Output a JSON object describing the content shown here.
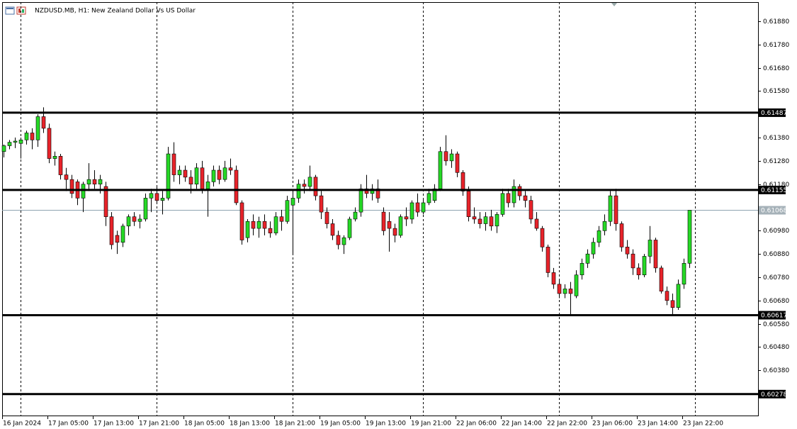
{
  "chart_data": {
    "type": "candlestick",
    "title": "NZDUSD.MB, H1:  New Zealand Dollar Vs US Dollar",
    "categories": [
      "16 Jan 2024",
      null,
      null,
      null,
      null,
      null,
      null,
      null,
      "17 Jan 05:00",
      null,
      null,
      null,
      null,
      null,
      null,
      null,
      "17 Jan 13:00",
      null,
      null,
      null,
      null,
      null,
      null,
      null,
      "17 Jan 21:00",
      null,
      null,
      null,
      null,
      null,
      null,
      null,
      "18 Jan 05:00",
      null,
      null,
      null,
      null,
      null,
      null,
      null,
      "18 Jan 13:00",
      null,
      null,
      null,
      null,
      null,
      null,
      null,
      "18 Jan 21:00",
      null,
      null,
      null,
      null,
      null,
      null,
      null,
      "19 Jan 05:00",
      null,
      null,
      null,
      null,
      null,
      null,
      null,
      "19 Jan 13:00",
      null,
      null,
      null,
      null,
      null,
      null,
      null,
      "19 Jan 21:00",
      null,
      null,
      null,
      null,
      null,
      null,
      null,
      "22 Jan 06:00",
      null,
      null,
      null,
      null,
      null,
      null,
      null,
      "22 Jan 14:00",
      null,
      null,
      null,
      null,
      null,
      null,
      null,
      "22 Jan 22:00",
      null,
      null,
      null,
      null,
      null,
      null,
      null,
      "23 Jan 06:00",
      null,
      null,
      null,
      null,
      null,
      null,
      null,
      "23 Jan 14:00",
      null,
      null,
      null,
      null,
      null,
      null,
      null,
      "23 Jan 22:00",
      null
    ],
    "open": [
      0.6132,
      0.61345,
      0.6136,
      0.61355,
      0.6137,
      0.614,
      0.6137,
      0.6147,
      0.6142,
      0.6129,
      0.613,
      0.6122,
      0.612,
      0.6119,
      0.6112,
      0.6118,
      0.612,
      0.6118,
      0.6117,
      0.6104,
      0.6096,
      0.6093,
      0.61,
      0.6104,
      0.6102,
      0.6103,
      0.6112,
      0.6114,
      0.6111,
      0.6112,
      0.6131,
      0.6122,
      0.6124,
      0.6121,
      0.6118,
      0.6125,
      0.6116,
      0.6119,
      0.6124,
      0.612,
      0.6125,
      0.6124,
      0.611,
      0.6095,
      0.6102,
      0.6099,
      0.6102,
      0.6099,
      0.6097,
      0.6104,
      0.6102,
      0.6109,
      0.6112,
      0.6118,
      0.6117,
      0.6121,
      0.6113,
      0.6106,
      0.6101,
      0.6096,
      0.6092,
      0.6095,
      0.6103,
      0.6106,
      0.6116,
      0.6114,
      0.6116,
      0.6106,
      0.6102,
      0.6099,
      0.6096,
      0.6104,
      0.6103,
      0.611,
      0.6106,
      0.611,
      0.6111,
      0.6116,
      0.6132,
      0.6128,
      0.6131,
      0.6123,
      0.6115,
      0.6104,
      0.6103,
      0.6101,
      0.6104,
      0.61,
      0.6105,
      0.6114,
      0.611,
      0.6117,
      0.6113,
      0.6111,
      0.6103,
      0.6099,
      0.6091,
      0.608,
      0.6075,
      0.6071,
      0.6073,
      0.607,
      0.6079,
      0.6084,
      0.6088,
      0.6093,
      0.6098,
      0.6102,
      0.6113,
      0.6101,
      0.6091,
      0.6088,
      0.6082,
      0.6079,
      0.6087,
      0.6094,
      0.6082,
      0.6072,
      0.6068,
      0.6065,
      0.6075,
      0.6084
    ],
    "high": [
      0.6135,
      0.6137,
      0.6138,
      0.6138,
      0.6141,
      0.6142,
      0.6148,
      0.6151,
      0.6144,
      0.6132,
      0.6131,
      0.6125,
      0.6122,
      0.612,
      0.6119,
      0.6127,
      0.6124,
      0.6122,
      0.6119,
      0.6106,
      0.6098,
      0.6101,
      0.6105,
      0.6106,
      0.6105,
      0.6114,
      0.6116,
      0.6117,
      0.6115,
      0.6134,
      0.6136,
      0.6126,
      0.6126,
      0.6124,
      0.6127,
      0.6128,
      0.6122,
      0.6126,
      0.6126,
      0.6128,
      0.6129,
      0.6126,
      0.6111,
      0.6103,
      0.6105,
      0.6104,
      0.6105,
      0.6102,
      0.6106,
      0.6107,
      0.6113,
      0.6115,
      0.612,
      0.612,
      0.6126,
      0.6122,
      0.6115,
      0.6108,
      0.6103,
      0.6098,
      0.6096,
      0.6104,
      0.6108,
      0.6118,
      0.6122,
      0.6118,
      0.612,
      0.6108,
      0.6106,
      0.6101,
      0.6105,
      0.6108,
      0.6111,
      0.6114,
      0.6112,
      0.6116,
      0.6118,
      0.6134,
      0.6139,
      0.6133,
      0.6132,
      0.6124,
      0.6117,
      0.6108,
      0.6106,
      0.6106,
      0.6107,
      0.6106,
      0.6116,
      0.6116,
      0.612,
      0.6118,
      0.6115,
      0.6113,
      0.6106,
      0.61,
      0.6092,
      0.6082,
      0.6077,
      0.6075,
      0.6076,
      0.6081,
      0.6086,
      0.609,
      0.6095,
      0.61,
      0.6105,
      0.6115,
      0.6116,
      0.6102,
      0.6094,
      0.609,
      0.6084,
      0.6088,
      0.61,
      0.6095,
      0.6083,
      0.6074,
      0.6071,
      0.6077,
      0.6086,
      0.61068
    ],
    "low": [
      0.61295,
      0.6133,
      0.61335,
      0.6129,
      0.6135,
      0.6133,
      0.6134,
      0.614,
      0.6127,
      0.6126,
      0.612,
      0.6115,
      0.6112,
      0.6109,
      0.6106,
      0.6115,
      0.6116,
      0.6114,
      0.61,
      0.609,
      0.6088,
      0.6091,
      0.6096,
      0.61,
      0.6099,
      0.6102,
      0.6106,
      0.611,
      0.6105,
      0.6111,
      0.6119,
      0.6118,
      0.6119,
      0.6114,
      0.6116,
      0.6114,
      0.6104,
      0.6117,
      0.6118,
      0.6119,
      0.6122,
      0.6109,
      0.6092,
      0.6093,
      0.6096,
      0.6095,
      0.6096,
      0.6095,
      0.6096,
      0.6098,
      0.6101,
      0.6088,
      0.611,
      0.6114,
      0.6115,
      0.6111,
      0.6103,
      0.6099,
      0.6094,
      0.609,
      0.6088,
      0.6094,
      0.6102,
      0.6104,
      0.6112,
      0.6111,
      0.611,
      0.6096,
      0.6089,
      0.6093,
      0.6095,
      0.61,
      0.6101,
      0.6104,
      0.6105,
      0.6109,
      0.611,
      0.6115,
      0.6126,
      0.6125,
      0.6121,
      0.6113,
      0.6102,
      0.6101,
      0.6099,
      0.6098,
      0.6098,
      0.6097,
      0.6104,
      0.6108,
      0.6108,
      0.6111,
      0.6108,
      0.6101,
      0.6098,
      0.6089,
      0.6078,
      0.6073,
      0.6069,
      0.6069,
      0.6062,
      0.6069,
      0.6077,
      0.6082,
      0.6086,
      0.6091,
      0.6096,
      0.61,
      0.6098,
      0.6089,
      0.6086,
      0.6079,
      0.6077,
      0.6078,
      0.6084,
      0.608,
      0.6071,
      0.6066,
      0.6062,
      0.6064,
      0.6073,
      0.6082
    ],
    "close": [
      0.61345,
      0.6136,
      0.61365,
      0.6137,
      0.614,
      0.6137,
      0.6147,
      0.6142,
      0.6129,
      0.613,
      0.6122,
      0.612,
      0.6114,
      0.6112,
      0.6118,
      0.612,
      0.6118,
      0.612,
      0.6104,
      0.6092,
      0.6093,
      0.61,
      0.6104,
      0.6102,
      0.6103,
      0.6112,
      0.6114,
      0.6111,
      0.6112,
      0.6131,
      0.6122,
      0.6124,
      0.6121,
      0.6118,
      0.6125,
      0.6116,
      0.6119,
      0.6124,
      0.612,
      0.6125,
      0.6124,
      0.611,
      0.6094,
      0.6102,
      0.6099,
      0.6102,
      0.6099,
      0.6097,
      0.6104,
      0.6102,
      0.6111,
      0.6112,
      0.6118,
      0.6117,
      0.6121,
      0.6113,
      0.6106,
      0.6101,
      0.6096,
      0.6092,
      0.6095,
      0.6103,
      0.6106,
      0.6116,
      0.6114,
      0.6116,
      0.6112,
      0.6098,
      0.6099,
      0.6096,
      0.6104,
      0.6103,
      0.611,
      0.6106,
      0.611,
      0.6114,
      0.6116,
      0.6132,
      0.6128,
      0.6131,
      0.6123,
      0.6115,
      0.6104,
      0.6103,
      0.6101,
      0.6104,
      0.61,
      0.6105,
      0.6114,
      0.611,
      0.6117,
      0.6113,
      0.6111,
      0.6103,
      0.6099,
      0.6091,
      0.608,
      0.6075,
      0.6071,
      0.6073,
      0.6071,
      0.6079,
      0.6084,
      0.6088,
      0.6093,
      0.6098,
      0.6102,
      0.6113,
      0.6101,
      0.6091,
      0.6088,
      0.6082,
      0.6079,
      0.6087,
      0.6094,
      0.6082,
      0.6072,
      0.6068,
      0.6065,
      0.6075,
      0.6084,
      0.61068
    ],
    "up_color": "#26d926",
    "down_color": "#e8232a",
    "ylim": [
      0.60186,
      0.61962
    ],
    "yticks": [
      {
        "value": 0.6188,
        "label": "0.61880"
      },
      {
        "value": 0.6178,
        "label": "0.61780"
      },
      {
        "value": 0.6168,
        "label": "0.61680"
      },
      {
        "value": 0.6158,
        "label": "0.61580"
      },
      {
        "value": 0.6138,
        "label": "0.61380"
      },
      {
        "value": 0.6128,
        "label": "0.61280"
      },
      {
        "value": 0.6118,
        "label": "0.61180"
      },
      {
        "value": 0.6098,
        "label": "0.60980"
      },
      {
        "value": 0.6088,
        "label": "0.60880"
      },
      {
        "value": 0.6078,
        "label": "0.60780"
      },
      {
        "value": 0.6068,
        "label": "0.60680"
      },
      {
        "value": 0.6058,
        "label": "0.60580"
      },
      {
        "value": 0.6048,
        "label": "0.60480"
      },
      {
        "value": 0.6038,
        "label": "0.60380"
      }
    ],
    "levels": [
      0.61487,
      0.61155,
      0.60617,
      0.60278
    ],
    "current_price": 0.61068
  }
}
